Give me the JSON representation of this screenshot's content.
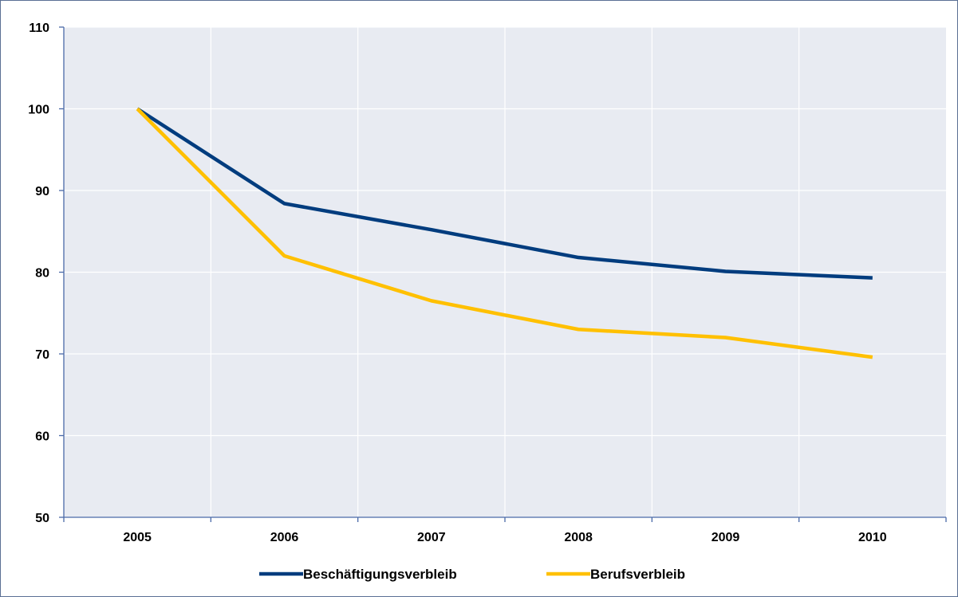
{
  "chart_data": {
    "type": "line",
    "categories": [
      "2005",
      "2006",
      "2007",
      "2008",
      "2009",
      "2010"
    ],
    "series": [
      {
        "name": "Beschäftigungsverbleib",
        "color": "#003c7e",
        "values": [
          100,
          88.4,
          85.2,
          81.8,
          80.1,
          79.3
        ]
      },
      {
        "name": "Berufsverbleib",
        "color": "#ffc000",
        "values": [
          100,
          82.0,
          76.5,
          73.0,
          72.0,
          69.6
        ]
      }
    ],
    "ylim": [
      50,
      110
    ],
    "yticks": [
      "50",
      "60",
      "70",
      "80",
      "90",
      "100",
      "110"
    ],
    "title": "",
    "xlabel": "",
    "ylabel": "",
    "grid": true,
    "legend_position": "bottom",
    "plot_background": "#e8ebf2",
    "grid_color": "#ffffff",
    "axis_color": "#4a6aa8"
  }
}
